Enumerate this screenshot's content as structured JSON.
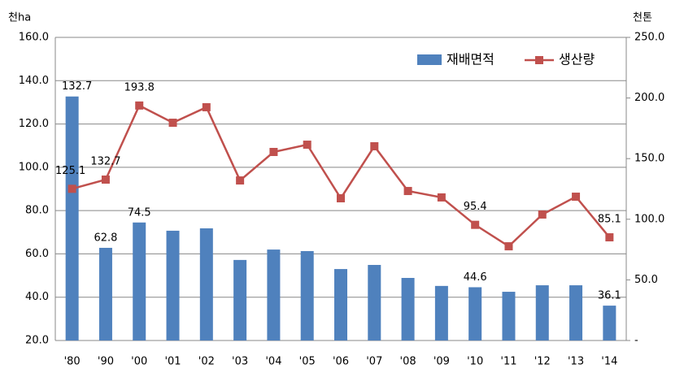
{
  "chart_data": {
    "type": "bar-line",
    "y_label": "천ha",
    "y2_label": "천톤",
    "categories": [
      "'80",
      "'90",
      "'00",
      "'01",
      "'02",
      "'03",
      "'04",
      "'05",
      "'06",
      "'07",
      "'08",
      "'09",
      "'10",
      "'11",
      "'12",
      "'13",
      "'14"
    ],
    "series": [
      {
        "name": "재배면적",
        "type": "bar",
        "color": "#4f81bd",
        "values": [
          132.7,
          62.8,
          74.5,
          70.7,
          71.8,
          57.2,
          62.0,
          61.3,
          53.0,
          54.9,
          48.9,
          45.2,
          44.6,
          42.5,
          45.5,
          45.5,
          36.1
        ],
        "value_labels": [
          "132.7",
          "62.8",
          "74.5",
          null,
          null,
          null,
          null,
          null,
          null,
          null,
          null,
          null,
          "44.6",
          null,
          null,
          null,
          "36.1"
        ]
      },
      {
        "name": "생산량",
        "type": "line",
        "axis": "y2",
        "color": "#c0504d",
        "values": [
          125.1,
          132.7,
          193.8,
          179.6,
          192.4,
          132.0,
          155.5,
          161.5,
          117.3,
          160.2,
          123.3,
          118.0,
          95.4,
          77.7,
          103.9,
          118.6,
          85.1
        ],
        "value_labels": [
          "125.1",
          "132.7",
          "193.8",
          null,
          null,
          null,
          null,
          null,
          null,
          null,
          null,
          null,
          "95.4",
          null,
          null,
          null,
          "85.1"
        ]
      }
    ],
    "ylim": [
      20,
      160
    ],
    "yticks": [
      {
        "value": 20,
        "label": "20.0"
      },
      {
        "value": 40,
        "label": "40.0"
      },
      {
        "value": 60,
        "label": "60.0"
      },
      {
        "value": 80,
        "label": "80.0"
      },
      {
        "value": 100,
        "label": "100.0"
      },
      {
        "value": 120,
        "label": "120.0"
      },
      {
        "value": 140,
        "label": "140.0"
      },
      {
        "value": 160,
        "label": "160.0"
      }
    ],
    "y2lim": [
      0,
      250
    ],
    "y2ticks": [
      {
        "value": 0,
        "label": "-"
      },
      {
        "value": 50,
        "label": "50.0"
      },
      {
        "value": 100,
        "label": "100.0"
      },
      {
        "value": 150,
        "label": "150.0"
      },
      {
        "value": 200,
        "label": "200.0"
      },
      {
        "value": 250,
        "label": "250.0"
      }
    ],
    "grid": true,
    "legend": "top-right"
  }
}
